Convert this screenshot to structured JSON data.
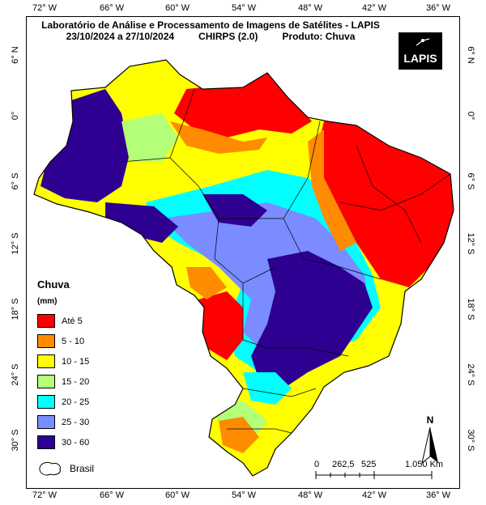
{
  "title_line1": "Laboratório de Análise e Processamento de Imagens de Satélites - LAPIS",
  "title_date": "23/10/2024  a 27/10/2024",
  "title_model": "CHIRPS (2.0)",
  "title_product": "Produto: Chuva",
  "logo_text": "LAPIS",
  "lon_ticks": [
    "72° W",
    "66° W",
    "60° W",
    "54° W",
    "48° W",
    "42° W",
    "36° W"
  ],
  "lat_ticks": [
    "6° N",
    "0°",
    "6° S",
    "12° S",
    "18° S",
    "24° S",
    "30° S"
  ],
  "legend": {
    "title": "Chuva",
    "unit": "(mm)",
    "items": [
      {
        "label": "Até 5",
        "color": "#ff0000"
      },
      {
        "label": "5 - 10",
        "color": "#ff8c00"
      },
      {
        "label": "10 - 15",
        "color": "#ffff00"
      },
      {
        "label": "15 - 20",
        "color": "#b4ff78"
      },
      {
        "label": "20 - 25",
        "color": "#00ffff"
      },
      {
        "label": "25 - 30",
        "color": "#7a8cff"
      },
      {
        "label": "30 - 60",
        "color": "#2e0091"
      }
    ]
  },
  "boundary_label": "Brasil",
  "scale": {
    "labels": [
      "0",
      "262,5",
      "525",
      "1.050 Km"
    ]
  },
  "north_label": "N"
}
